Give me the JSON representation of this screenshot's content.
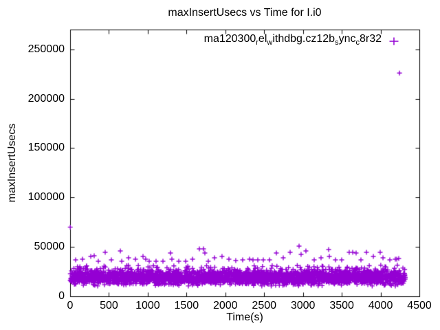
{
  "chart_data": {
    "type": "scatter",
    "title": "maxInsertUsecs vs Time for I.i0",
    "xlabel": "Time(s)",
    "ylabel": "maxInsertUsecs",
    "xlim": [
      0,
      4500
    ],
    "ylim": [
      0,
      270000
    ],
    "xticks": [
      0,
      500,
      1000,
      1500,
      2000,
      2500,
      3000,
      3500,
      4000,
      4500
    ],
    "yticks": [
      0,
      50000,
      100000,
      150000,
      200000,
      250000
    ],
    "grid": false,
    "legend_position": "top-right-inside",
    "axis_color": "#000000",
    "background_color": "#ffffff",
    "series": [
      {
        "name": "ma120300_rel_withdbg.cz12b_sync_c8r32",
        "label_segments": [
          {
            "text": "ma120300"
          },
          {
            "text": "r",
            "sub": true
          },
          {
            "text": "el"
          },
          {
            "text": "w",
            "sub": true
          },
          {
            "text": "ithdbg.cz12b"
          },
          {
            "text": "s",
            "sub": true
          },
          {
            "text": "ync"
          },
          {
            "text": "c",
            "sub": true
          },
          {
            "text": "8r32"
          }
        ],
        "marker": "plus",
        "color": "#9400D3"
      }
    ],
    "band": {
      "seed": 1337,
      "count": 3000,
      "x_min": 0,
      "x_max": 4320,
      "y_mean": 19500,
      "y_spread": 7000,
      "y_min": 10500,
      "y_max": 28500
    },
    "fringe": {
      "count": 80,
      "y_min": 26500,
      "y_max": 31500
    },
    "outliers": [
      [
        71,
        36900
      ],
      [
        159,
        37600
      ],
      [
        266,
        40400
      ],
      [
        310,
        41100
      ],
      [
        363,
        35500
      ],
      [
        452,
        44500
      ],
      [
        531,
        36900
      ],
      [
        647,
        45900
      ],
      [
        665,
        35500
      ],
      [
        753,
        39000
      ],
      [
        842,
        37600
      ],
      [
        939,
        40400
      ],
      [
        974,
        37600
      ],
      [
        1019,
        35500
      ],
      [
        1107,
        35500
      ],
      [
        1196,
        35500
      ],
      [
        1293,
        43800
      ],
      [
        1311,
        37600
      ],
      [
        1400,
        35500
      ],
      [
        1489,
        35500
      ],
      [
        1577,
        37600
      ],
      [
        1665,
        48000
      ],
      [
        1718,
        48000
      ],
      [
        1736,
        43800
      ],
      [
        1780,
        35500
      ],
      [
        1860,
        39000
      ],
      [
        1957,
        40400
      ],
      [
        2046,
        37600
      ],
      [
        2134,
        36200
      ],
      [
        2223,
        36900
      ],
      [
        2312,
        37600
      ],
      [
        2356,
        36900
      ],
      [
        2418,
        36900
      ],
      [
        2489,
        36900
      ],
      [
        2569,
        36900
      ],
      [
        2657,
        43800
      ],
      [
        2746,
        39000
      ],
      [
        2835,
        44500
      ],
      [
        2950,
        50800
      ],
      [
        2976,
        42500
      ],
      [
        3038,
        45900
      ],
      [
        3145,
        36900
      ],
      [
        3233,
        39000
      ],
      [
        3331,
        47300
      ],
      [
        3340,
        40400
      ],
      [
        3419,
        36900
      ],
      [
        3499,
        36900
      ],
      [
        3596,
        44500
      ],
      [
        3641,
        44500
      ],
      [
        3685,
        43800
      ],
      [
        3747,
        36900
      ],
      [
        3818,
        44500
      ],
      [
        3907,
        40400
      ],
      [
        3995,
        44500
      ],
      [
        4031,
        39000
      ],
      [
        4057,
        29900
      ],
      [
        4119,
        36900
      ],
      [
        4190,
        37600
      ],
      [
        4208,
        37600
      ],
      [
        4234,
        38300
      ]
    ],
    "special_points": [
      [
        2,
        70000
      ],
      [
        4244,
        226000
      ]
    ]
  }
}
